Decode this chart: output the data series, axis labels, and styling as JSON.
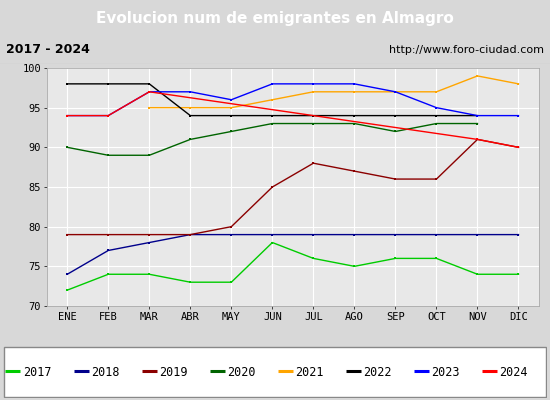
{
  "title": "Evolucion num de emigrantes en Almagro",
  "subtitle_left": "2017 - 2024",
  "subtitle_right": "http://www.foro-ciudad.com",
  "months": [
    "ENE",
    "FEB",
    "MAR",
    "ABR",
    "MAY",
    "JUN",
    "JUL",
    "AGO",
    "SEP",
    "OCT",
    "NOV",
    "DIC"
  ],
  "ylim": [
    70,
    100
  ],
  "yticks": [
    70,
    75,
    80,
    85,
    90,
    95,
    100
  ],
  "series": {
    "2017": {
      "color": "#00cc00",
      "data": [
        72,
        74,
        74,
        73,
        73,
        78,
        76,
        75,
        76,
        76,
        74,
        74
      ]
    },
    "2018": {
      "color": "#00008b",
      "data": [
        74,
        77,
        78,
        79,
        79,
        79,
        79,
        79,
        79,
        79,
        79,
        79
      ]
    },
    "2019": {
      "color": "#8b0000",
      "data": [
        79,
        79,
        79,
        79,
        80,
        85,
        88,
        87,
        86,
        86,
        91,
        90
      ]
    },
    "2020": {
      "color": "#006400",
      "data": [
        90,
        89,
        89,
        91,
        92,
        93,
        93,
        93,
        92,
        93,
        93,
        null
      ]
    },
    "2021": {
      "color": "#ffa500",
      "data": [
        null,
        null,
        95,
        95,
        95,
        96,
        97,
        97,
        97,
        97,
        99,
        98
      ]
    },
    "2022": {
      "color": "#000000",
      "data": [
        98,
        98,
        98,
        94,
        94,
        94,
        94,
        94,
        94,
        94,
        94,
        null
      ]
    },
    "2023": {
      "color": "#0000ff",
      "data": [
        94,
        94,
        97,
        97,
        96,
        98,
        98,
        98,
        97,
        95,
        94,
        94
      ]
    },
    "2024": {
      "color": "#ff0000",
      "data": [
        94,
        94,
        97,
        null,
        null,
        null,
        null,
        null,
        null,
        null,
        91,
        90
      ]
    }
  },
  "title_bgcolor": "#4472b8",
  "title_color": "white",
  "subtitle_bgcolor": "#d8d8d8",
  "plot_bgcolor": "#e8e8e8",
  "grid_color": "white",
  "title_fontsize": 11,
  "legend_fontsize": 8.5
}
